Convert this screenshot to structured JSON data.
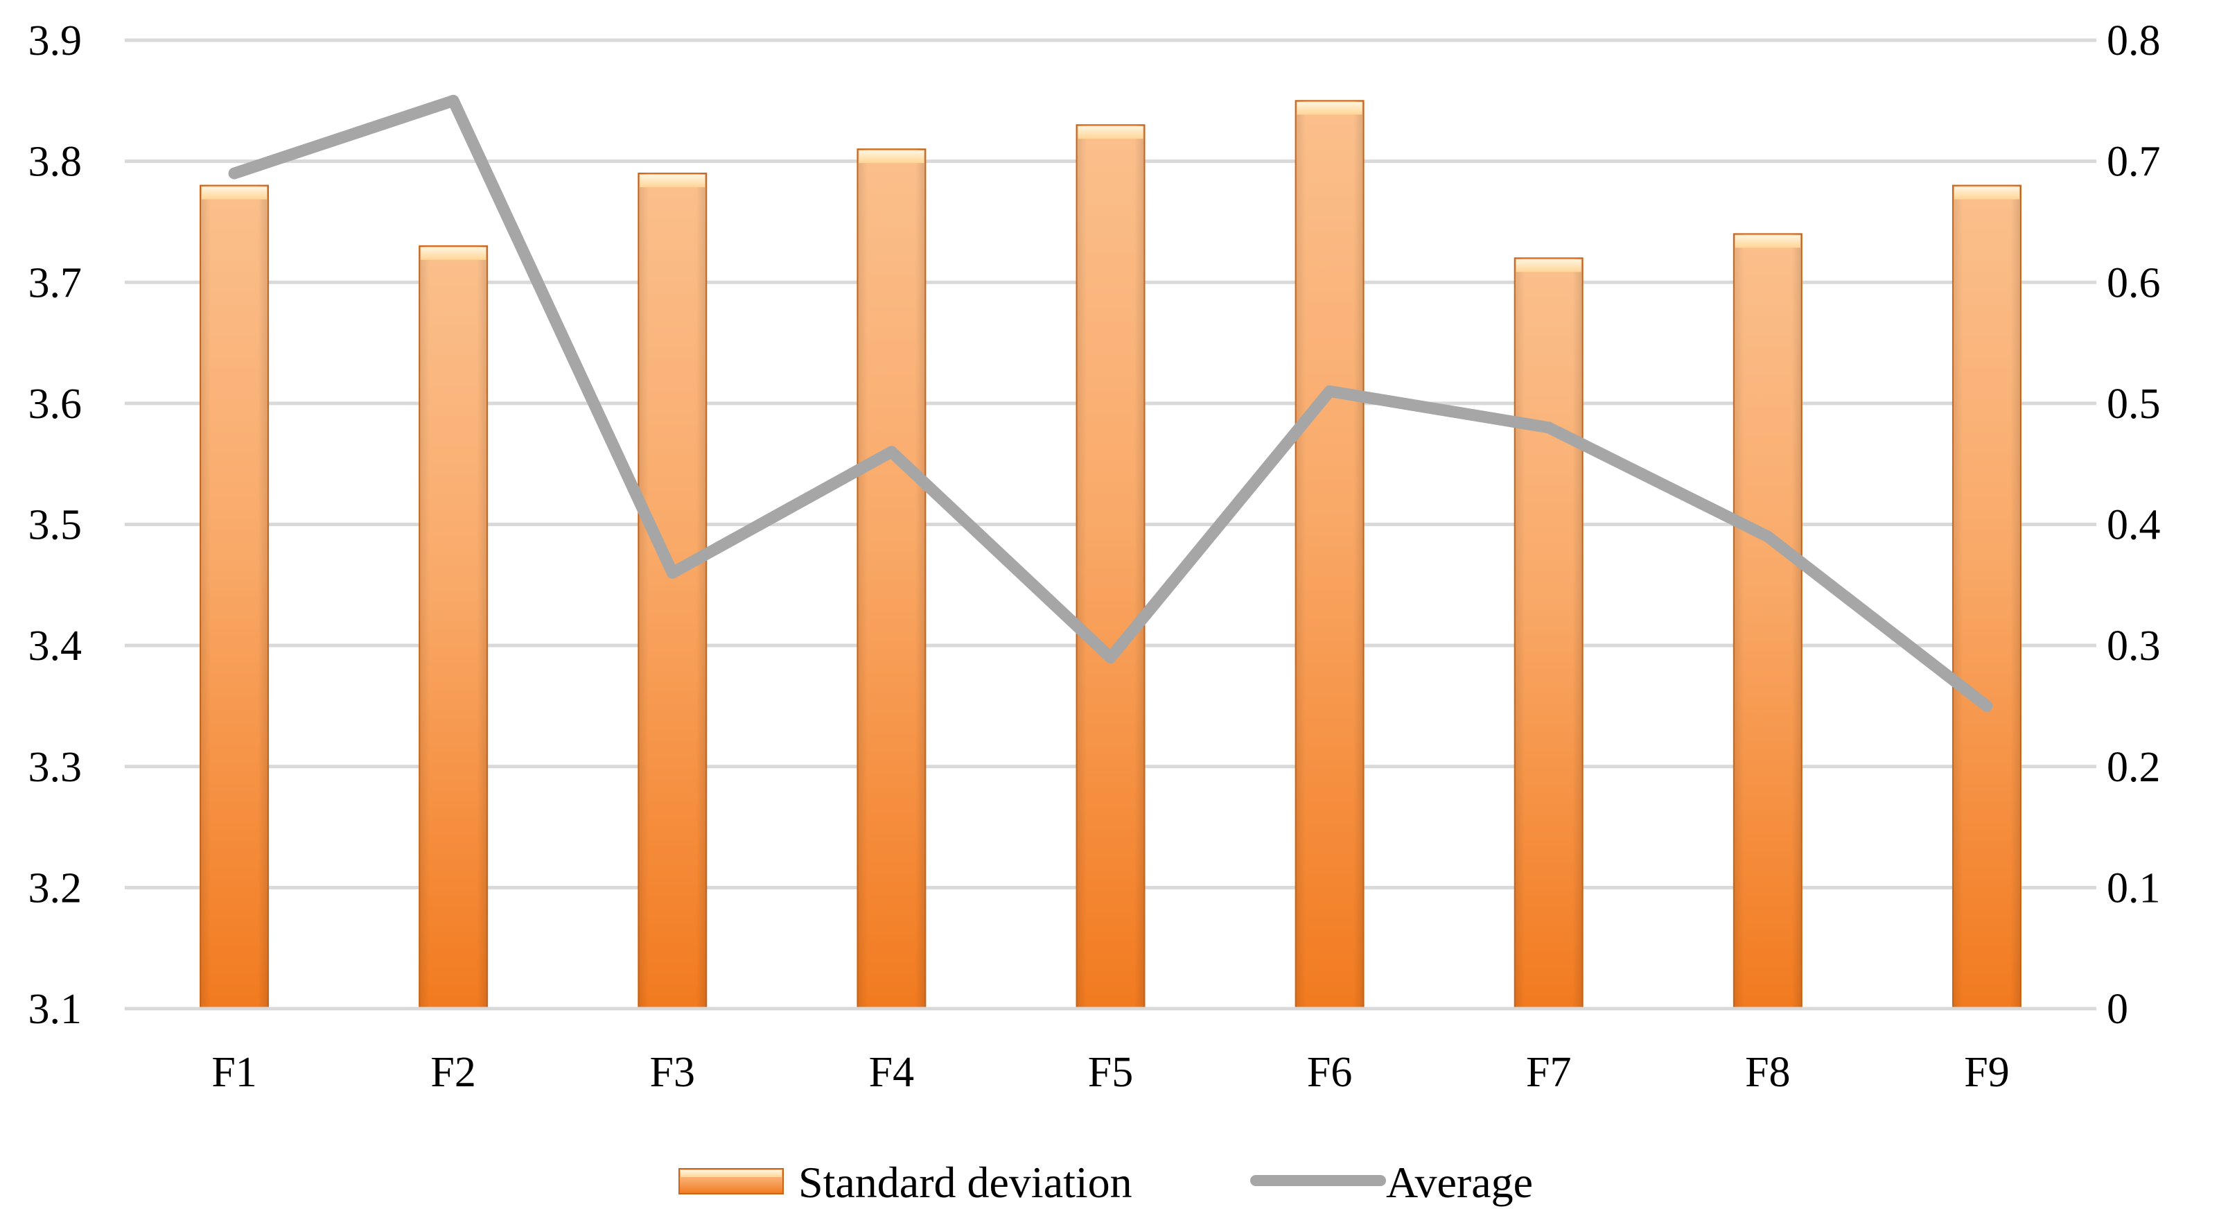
{
  "chart_data": {
    "type": "bar",
    "title": "",
    "xlabel": "",
    "ylabel": "",
    "categories": [
      "F1",
      "F2",
      "F3",
      "F4",
      "F5",
      "F6",
      "F7",
      "F8",
      "F9"
    ],
    "y_left": {
      "lim": [
        3.1,
        3.9
      ],
      "ticks": [
        "3.1",
        "3.2",
        "3.3",
        "3.4",
        "3.5",
        "3.6",
        "3.7",
        "3.8",
        "3.9"
      ]
    },
    "y_right": {
      "lim": [
        0,
        0.8
      ],
      "ticks": [
        "0",
        "0.1",
        "0.2",
        "0.3",
        "0.4",
        "0.5",
        "0.6",
        "0.7",
        "0.8"
      ]
    },
    "grid": true,
    "legend_position": "bottom-center",
    "series": [
      {
        "name": "Standard deviation",
        "kind": "bar",
        "axis": "left",
        "values": [
          3.78,
          3.73,
          3.79,
          3.81,
          3.83,
          3.85,
          3.72,
          3.74,
          3.78
        ],
        "color": "#f5913e"
      },
      {
        "name": "Average",
        "kind": "line",
        "axis": "right",
        "values": [
          0.69,
          0.75,
          0.36,
          0.46,
          0.29,
          0.51,
          0.48,
          0.39,
          0.25
        ],
        "color": "#a6a6a6"
      }
    ]
  }
}
